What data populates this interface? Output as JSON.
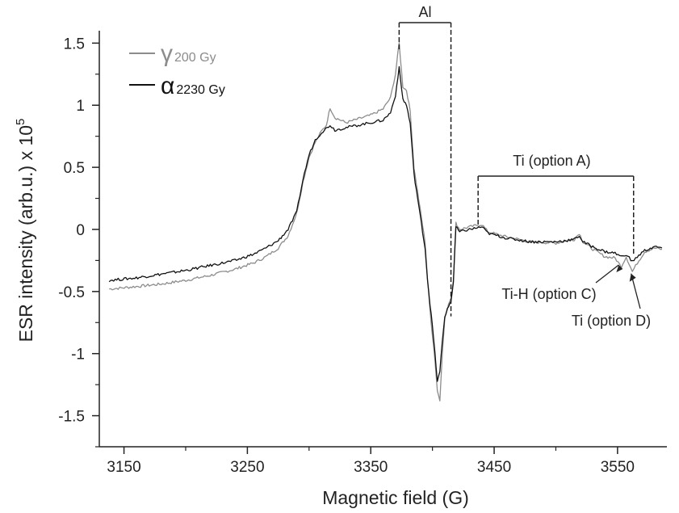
{
  "chart_data": {
    "type": "line",
    "title": "",
    "xlabel": "Magnetic field (G)",
    "ylabel_main": "ESR intensity (arb.u.) x 10",
    "ylabel_exponent": "5",
    "xlim": [
      3130,
      3590
    ],
    "ylim": [
      -1.75,
      1.6
    ],
    "x_ticks": [
      3150,
      3250,
      3350,
      3450,
      3550
    ],
    "y_ticks": [
      1.5,
      1,
      0.5,
      0,
      -0.5,
      -1,
      -1.5
    ],
    "y_tick_labels": [
      "1.5",
      "1",
      "0.5",
      "0",
      "-0.5",
      "-1",
      "-1.5"
    ],
    "legend_position": "top-left",
    "series": [
      {
        "name": "γ 200 Gy",
        "greek": "γ",
        "dose": "200 Gy",
        "color": "#8c8c8c",
        "points": [
          [
            3138,
            -0.48
          ],
          [
            3160,
            -0.46
          ],
          [
            3180,
            -0.44
          ],
          [
            3200,
            -0.41
          ],
          [
            3220,
            -0.37
          ],
          [
            3240,
            -0.32
          ],
          [
            3255,
            -0.27
          ],
          [
            3265,
            -0.22
          ],
          [
            3275,
            -0.15
          ],
          [
            3283,
            -0.05
          ],
          [
            3290,
            0.13
          ],
          [
            3295,
            0.38
          ],
          [
            3300,
            0.58
          ],
          [
            3305,
            0.7
          ],
          [
            3310,
            0.79
          ],
          [
            3314,
            0.84
          ],
          [
            3317,
            0.98
          ],
          [
            3321,
            0.9
          ],
          [
            3330,
            0.86
          ],
          [
            3340,
            0.89
          ],
          [
            3350,
            0.92
          ],
          [
            3360,
            0.97
          ],
          [
            3366,
            1.06
          ],
          [
            3370,
            1.25
          ],
          [
            3373,
            1.5
          ],
          [
            3376,
            1.15
          ],
          [
            3379,
            1.12
          ],
          [
            3382,
            0.95
          ],
          [
            3385,
            0.5
          ],
          [
            3388,
            0.3
          ],
          [
            3391,
            0.1
          ],
          [
            3394,
            -0.1
          ],
          [
            3396,
            -0.4
          ],
          [
            3398,
            -0.65
          ],
          [
            3400,
            -0.85
          ],
          [
            3402,
            -1.05
          ],
          [
            3404,
            -1.3
          ],
          [
            3406,
            -1.37
          ],
          [
            3408,
            -1.0
          ],
          [
            3410,
            -0.72
          ],
          [
            3413,
            -0.6
          ],
          [
            3415,
            -0.55
          ],
          [
            3417,
            -0.4
          ],
          [
            3419,
            0.05
          ],
          [
            3422,
            0.0
          ],
          [
            3430,
            0.02
          ],
          [
            3440,
            0.04
          ],
          [
            3445,
            -0.02
          ],
          [
            3460,
            -0.06
          ],
          [
            3480,
            -0.1
          ],
          [
            3500,
            -0.11
          ],
          [
            3515,
            -0.08
          ],
          [
            3519,
            -0.03
          ],
          [
            3522,
            -0.1
          ],
          [
            3530,
            -0.16
          ],
          [
            3540,
            -0.22
          ],
          [
            3548,
            -0.23
          ],
          [
            3553,
            -0.3
          ],
          [
            3557,
            -0.22
          ],
          [
            3562,
            -0.34
          ],
          [
            3566,
            -0.27
          ],
          [
            3572,
            -0.18
          ],
          [
            3580,
            -0.15
          ],
          [
            3586,
            -0.16
          ]
        ]
      },
      {
        "name": "α 2230 Gy",
        "greek": "α",
        "dose": "2230 Gy",
        "color": "#111111",
        "points": [
          [
            3138,
            -0.41
          ],
          [
            3160,
            -0.39
          ],
          [
            3180,
            -0.36
          ],
          [
            3200,
            -0.33
          ],
          [
            3220,
            -0.29
          ],
          [
            3240,
            -0.25
          ],
          [
            3255,
            -0.2
          ],
          [
            3265,
            -0.15
          ],
          [
            3275,
            -0.09
          ],
          [
            3283,
            0.0
          ],
          [
            3290,
            0.14
          ],
          [
            3295,
            0.4
          ],
          [
            3300,
            0.6
          ],
          [
            3305,
            0.72
          ],
          [
            3310,
            0.78
          ],
          [
            3317,
            0.84
          ],
          [
            3321,
            0.8
          ],
          [
            3330,
            0.82
          ],
          [
            3340,
            0.84
          ],
          [
            3350,
            0.86
          ],
          [
            3360,
            0.88
          ],
          [
            3366,
            0.94
          ],
          [
            3370,
            1.08
          ],
          [
            3373,
            1.3
          ],
          [
            3376,
            1.05
          ],
          [
            3379,
            1.0
          ],
          [
            3382,
            0.85
          ],
          [
            3385,
            0.45
          ],
          [
            3388,
            0.25
          ],
          [
            3391,
            0.05
          ],
          [
            3394,
            -0.15
          ],
          [
            3396,
            -0.4
          ],
          [
            3398,
            -0.6
          ],
          [
            3400,
            -0.78
          ],
          [
            3402,
            -1.0
          ],
          [
            3404,
            -1.22
          ],
          [
            3406,
            -1.15
          ],
          [
            3408,
            -0.9
          ],
          [
            3410,
            -0.7
          ],
          [
            3413,
            -0.62
          ],
          [
            3415,
            -0.58
          ],
          [
            3417,
            -0.42
          ],
          [
            3419,
            0.02
          ],
          [
            3422,
            -0.02
          ],
          [
            3430,
            0.0
          ],
          [
            3440,
            0.02
          ],
          [
            3445,
            -0.03
          ],
          [
            3460,
            -0.07
          ],
          [
            3480,
            -0.1
          ],
          [
            3500,
            -0.1
          ],
          [
            3515,
            -0.08
          ],
          [
            3519,
            -0.05
          ],
          [
            3522,
            -0.1
          ],
          [
            3530,
            -0.14
          ],
          [
            3540,
            -0.18
          ],
          [
            3548,
            -0.19
          ],
          [
            3553,
            -0.22
          ],
          [
            3557,
            -0.2
          ],
          [
            3562,
            -0.26
          ],
          [
            3566,
            -0.22
          ],
          [
            3572,
            -0.17
          ],
          [
            3580,
            -0.14
          ],
          [
            3586,
            -0.15
          ]
        ]
      }
    ],
    "annotations": {
      "al": {
        "label": "Al",
        "x_start": 3373,
        "x_end": 3415,
        "y": 1.7
      },
      "ti_a": {
        "label": "Ti (option A)",
        "x_start": 3437,
        "x_end": 3563,
        "y": 0.42
      },
      "ti_h": {
        "label": "Ti-H (option C)",
        "target_x": 3551,
        "target_y": -0.26
      },
      "ti_d": {
        "label": "Ti (option D)",
        "target_x": 3561,
        "target_y": -0.33
      }
    }
  }
}
